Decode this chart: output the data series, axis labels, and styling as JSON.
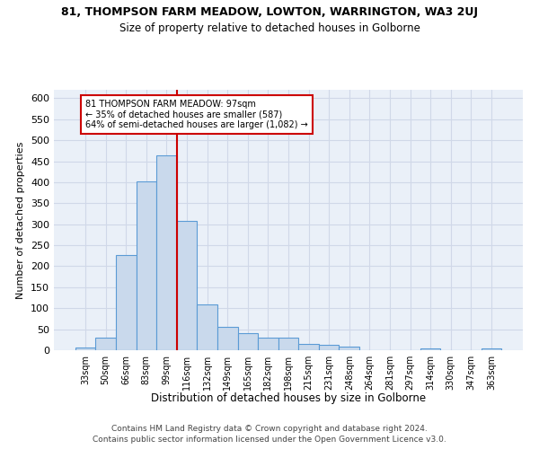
{
  "title": "81, THOMPSON FARM MEADOW, LOWTON, WARRINGTON, WA3 2UJ",
  "subtitle": "Size of property relative to detached houses in Golborne",
  "xlabel_bottom": "Distribution of detached houses by size in Golborne",
  "ylabel": "Number of detached properties",
  "categories": [
    "33sqm",
    "50sqm",
    "66sqm",
    "83sqm",
    "99sqm",
    "116sqm",
    "132sqm",
    "149sqm",
    "165sqm",
    "182sqm",
    "198sqm",
    "215sqm",
    "231sqm",
    "248sqm",
    "264sqm",
    "281sqm",
    "297sqm",
    "314sqm",
    "330sqm",
    "347sqm",
    "363sqm"
  ],
  "values": [
    7,
    30,
    226,
    403,
    463,
    307,
    110,
    55,
    40,
    30,
    30,
    14,
    13,
    8,
    0,
    0,
    0,
    5,
    0,
    0,
    5
  ],
  "bar_color": "#c9d9ec",
  "bar_edge_color": "#5b9bd5",
  "marker_label_line1": "81 THOMPSON FARM MEADOW: 97sqm",
  "marker_label_line2": "← 35% of detached houses are smaller (587)",
  "marker_label_line3": "64% of semi-detached houses are larger (1,082) →",
  "annotation_box_color": "#ffffff",
  "annotation_box_edge": "#cc0000",
  "vline_color": "#cc0000",
  "vline_x_index": 4.5,
  "grid_color": "#d0d8e8",
  "background_color": "#eaf0f8",
  "footer1": "Contains HM Land Registry data © Crown copyright and database right 2024.",
  "footer2": "Contains public sector information licensed under the Open Government Licence v3.0.",
  "ylim": [
    0,
    620
  ],
  "yticks": [
    0,
    50,
    100,
    150,
    200,
    250,
    300,
    350,
    400,
    450,
    500,
    550,
    600
  ]
}
